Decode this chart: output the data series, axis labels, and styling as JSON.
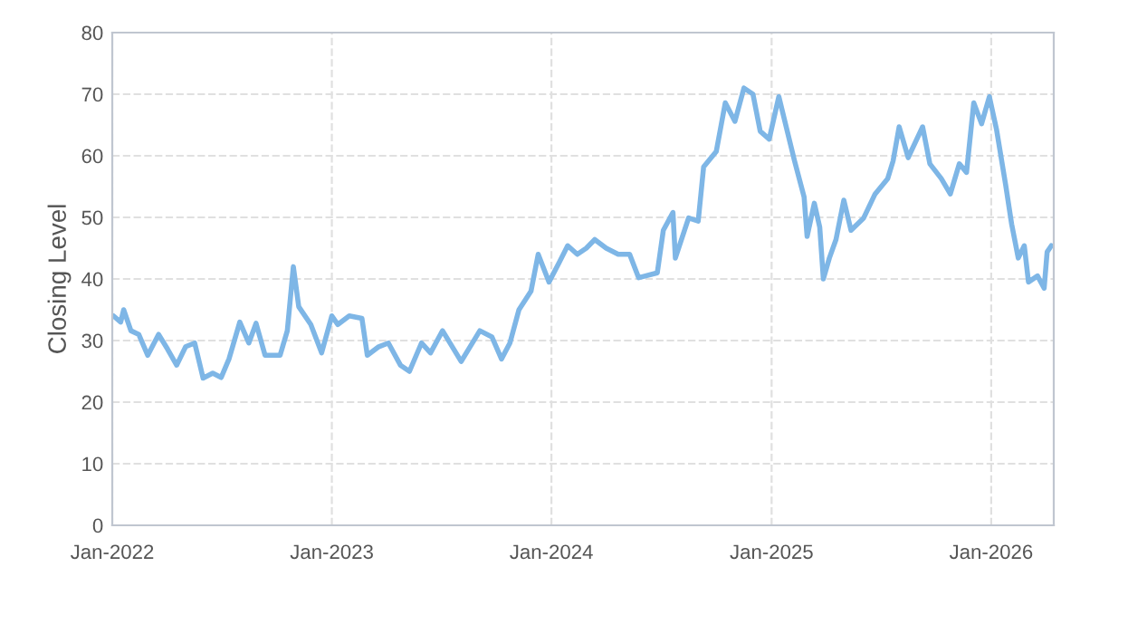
{
  "chart_data": {
    "type": "line",
    "ylabel": "Closing Level",
    "x": [
      "2022-01-03",
      "2022-01-15",
      "2022-01-20",
      "2022-02-01",
      "2022-02-14",
      "2022-03-01",
      "2022-03-19",
      "2022-04-03",
      "2022-04-18",
      "2022-05-03",
      "2022-05-18",
      "2022-06-01",
      "2022-06-17",
      "2022-07-01",
      "2022-07-14",
      "2022-08-01",
      "2022-08-16",
      "2022-08-28",
      "2022-09-12",
      "2022-10-07",
      "2022-10-19",
      "2022-10-29",
      "2022-11-07",
      "2022-11-27",
      "2022-12-15",
      "2023-01-01",
      "2023-01-11",
      "2023-01-30",
      "2023-02-20",
      "2023-03-01",
      "2023-03-20",
      "2023-04-05",
      "2023-04-25",
      "2023-05-10",
      "2023-05-30",
      "2023-06-14",
      "2023-07-04",
      "2023-08-04",
      "2023-09-04",
      "2023-09-24",
      "2023-10-10",
      "2023-10-24",
      "2023-11-08",
      "2023-11-28",
      "2023-12-10",
      "2023-12-28",
      "2024-01-13",
      "2024-01-28",
      "2024-02-13",
      "2024-02-28",
      "2024-03-13",
      "2024-04-01",
      "2024-04-21",
      "2024-05-10",
      "2024-05-25",
      "2024-06-25",
      "2024-07-05",
      "2024-07-21",
      "2024-07-25",
      "2024-08-16",
      "2024-09-01",
      "2024-09-10",
      "2024-10-01",
      "2024-10-16",
      "2024-11-01",
      "2024-11-16",
      "2024-12-01",
      "2024-12-13",
      "2024-12-28",
      "2025-01-13",
      "2025-02-08",
      "2025-02-24",
      "2025-03-01",
      "2025-03-13",
      "2025-03-22",
      "2025-03-28",
      "2025-04-07",
      "2025-04-18",
      "2025-05-01",
      "2025-05-13",
      "2025-06-03",
      "2025-06-22",
      "2025-07-13",
      "2025-07-22",
      "2025-08-01",
      "2025-08-16",
      "2025-09-09",
      "2025-09-21",
      "2025-10-10",
      "2025-10-25",
      "2025-11-09",
      "2025-11-21",
      "2025-12-03",
      "2025-12-16",
      "2025-12-29",
      "2026-01-10",
      "2026-01-25",
      "2026-02-04",
      "2026-02-15",
      "2026-02-25",
      "2026-03-04",
      "2026-03-19",
      "2026-03-30",
      "2026-04-04",
      "2026-04-11"
    ],
    "series": [
      {
        "color": "#7eb6e6",
        "values": [
          34,
          33,
          35,
          31.6,
          31,
          27.6,
          31,
          28.6,
          26,
          29,
          29.6,
          23.9,
          24.7,
          24,
          27,
          33,
          29.6,
          32.8,
          27.6,
          27.6,
          31.6,
          42,
          35.5,
          32.6,
          28,
          34,
          32.6,
          34,
          33.6,
          27.6,
          29,
          29.6,
          26,
          25,
          29.6,
          28,
          31.6,
          26.6,
          31.6,
          30.6,
          27,
          29.6,
          35,
          38,
          44,
          39.5,
          42.5,
          45.4,
          44,
          45,
          46.4,
          45,
          44,
          44,
          40.2,
          41,
          47.9,
          50.8,
          43.4,
          49.9,
          49.4,
          58.2,
          60.7,
          68.6,
          65.6,
          71,
          70,
          64,
          62.7,
          69.6,
          59.2,
          53.3,
          46.9,
          52.3,
          48.4,
          40,
          43.4,
          46.4,
          52.8,
          47.9,
          49.9,
          53.8,
          56.3,
          59.2,
          64.7,
          59.7,
          64.7,
          58.7,
          56.3,
          53.8,
          58.7,
          57.3,
          68.6,
          65.2,
          69.6,
          64.2,
          55.3,
          48.9,
          43.4,
          45.4,
          39.5,
          40.5,
          38.5,
          44.4,
          45.4
        ]
      }
    ],
    "xlim": [
      "2022-01-01",
      "2026-04-15"
    ],
    "xticks": [
      {
        "value": "2022-01-01",
        "label": "Jan-2022"
      },
      {
        "value": "2023-01-01",
        "label": "Jan-2023"
      },
      {
        "value": "2024-01-01",
        "label": "Jan-2024"
      },
      {
        "value": "2025-01-01",
        "label": "Jan-2025"
      },
      {
        "value": "2026-01-01",
        "label": "Jan-2026"
      }
    ],
    "ylim": [
      0,
      80
    ],
    "yticks": [
      0,
      10,
      20,
      30,
      40,
      50,
      60,
      70,
      80
    ],
    "grid": true,
    "marker": "none",
    "line_style": "solid",
    "legend": false
  }
}
